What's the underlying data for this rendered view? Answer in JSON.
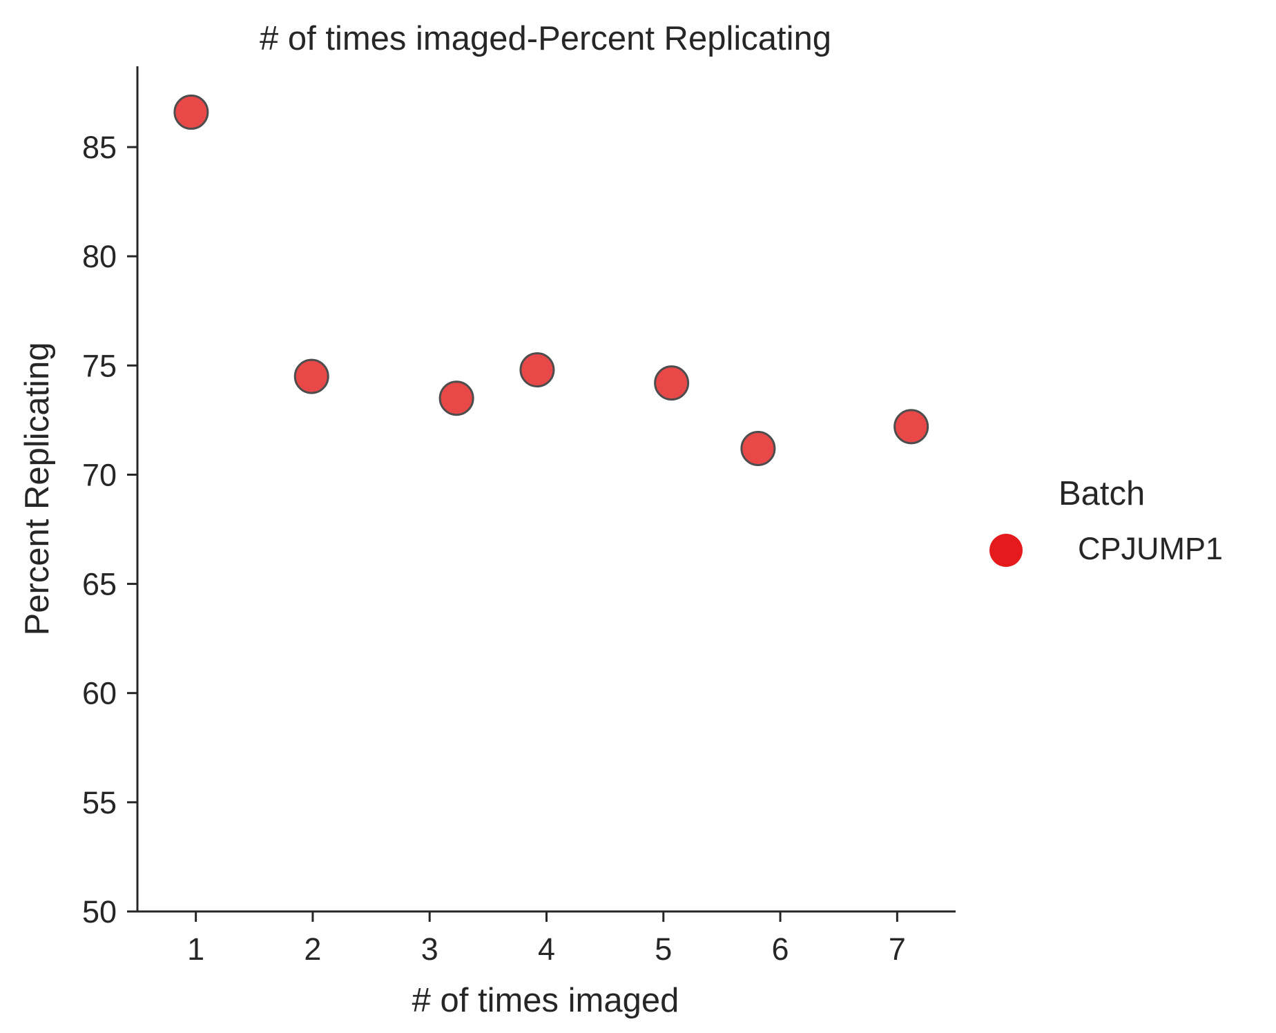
{
  "chart_data": {
    "type": "scatter",
    "title": "# of times imaged-Percent Replicating",
    "xlabel": "# of times imaged",
    "ylabel": "Percent Replicating",
    "xlim": [
      0.5,
      7.5
    ],
    "ylim": [
      50,
      88.7
    ],
    "xticks": [
      1,
      2,
      3,
      4,
      5,
      6,
      7
    ],
    "yticks": [
      50,
      55,
      60,
      65,
      70,
      75,
      80,
      85
    ],
    "grid": false,
    "legend": {
      "title": "Batch",
      "placement": "right"
    },
    "series": [
      {
        "name": "CPJUMP1",
        "color": "#e41a1c",
        "points": [
          {
            "x": 0.96,
            "y": 86.6
          },
          {
            "x": 1.99,
            "y": 74.5
          },
          {
            "x": 3.23,
            "y": 73.5
          },
          {
            "x": 3.92,
            "y": 74.8
          },
          {
            "x": 5.07,
            "y": 74.2
          },
          {
            "x": 5.81,
            "y": 71.2
          },
          {
            "x": 7.12,
            "y": 72.2
          }
        ]
      }
    ]
  }
}
